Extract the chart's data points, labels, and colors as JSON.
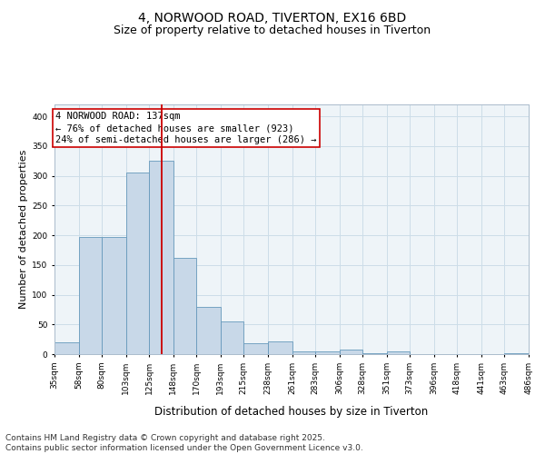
{
  "title_line1": "4, NORWOOD ROAD, TIVERTON, EX16 6BD",
  "title_line2": "Size of property relative to detached houses in Tiverton",
  "xlabel": "Distribution of detached houses by size in Tiverton",
  "ylabel": "Number of detached properties",
  "bin_edges": [
    35,
    58,
    80,
    103,
    125,
    148,
    170,
    193,
    215,
    238,
    261,
    283,
    306,
    328,
    351,
    373,
    396,
    418,
    441,
    463,
    486
  ],
  "bar_heights": [
    20,
    197,
    197,
    305,
    325,
    162,
    80,
    55,
    18,
    22,
    5,
    5,
    7,
    1,
    5,
    0,
    0,
    0,
    0,
    1
  ],
  "bar_color": "#c8d8e8",
  "bar_edge_color": "#6699bb",
  "vline_x": 137,
  "vline_color": "#cc0000",
  "annotation_text": "4 NORWOOD ROAD: 137sqm\n← 76% of detached houses are smaller (923)\n24% of semi-detached houses are larger (286) →",
  "annotation_box_color": "#cc0000",
  "ylim": [
    0,
    420
  ],
  "yticks": [
    0,
    50,
    100,
    150,
    200,
    250,
    300,
    350,
    400
  ],
  "grid_color": "#ccdde8",
  "background_color": "#eef4f8",
  "footer_text": "Contains HM Land Registry data © Crown copyright and database right 2025.\nContains public sector information licensed under the Open Government Licence v3.0.",
  "title_fontsize": 10,
  "subtitle_fontsize": 9,
  "xlabel_fontsize": 8.5,
  "ylabel_fontsize": 8,
  "tick_fontsize": 6.5,
  "annotation_fontsize": 7.5,
  "footer_fontsize": 6.5
}
